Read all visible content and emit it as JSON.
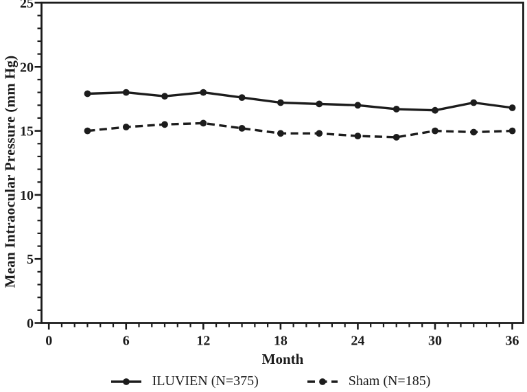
{
  "figure": {
    "background": "#ffffff",
    "ink_color": "#1c1c1c"
  },
  "chart_data": {
    "type": "line",
    "title": "",
    "xlabel": "Month",
    "ylabel": "Mean Intraocular Pressure (mm Hg)",
    "x": [
      3,
      6,
      9,
      12,
      15,
      18,
      21,
      24,
      27,
      30,
      33,
      36
    ],
    "series": [
      {
        "name": "ILUVIEN (N=375)",
        "line_style": "solid",
        "marker": "circle",
        "values": [
          17.9,
          18.0,
          17.7,
          18.0,
          17.6,
          17.2,
          17.1,
          17.0,
          16.7,
          16.6,
          17.2,
          16.8
        ]
      },
      {
        "name": "Sham (N=185)",
        "line_style": "dashed",
        "marker": "circle",
        "values": [
          15.0,
          15.3,
          15.5,
          15.6,
          15.2,
          14.8,
          14.8,
          14.6,
          14.5,
          15.0,
          14.9,
          15.0
        ]
      }
    ],
    "xlim": [
      0,
      36
    ],
    "ylim": [
      0,
      25
    ],
    "xticks": [
      0,
      6,
      12,
      18,
      24,
      30,
      36
    ],
    "yticks": [
      0,
      5,
      10,
      15,
      20,
      25
    ],
    "minor_tick_interval_x": 1,
    "minor_tick_interval_y": 1,
    "grid": "off",
    "legend_position": "bottom-center"
  }
}
